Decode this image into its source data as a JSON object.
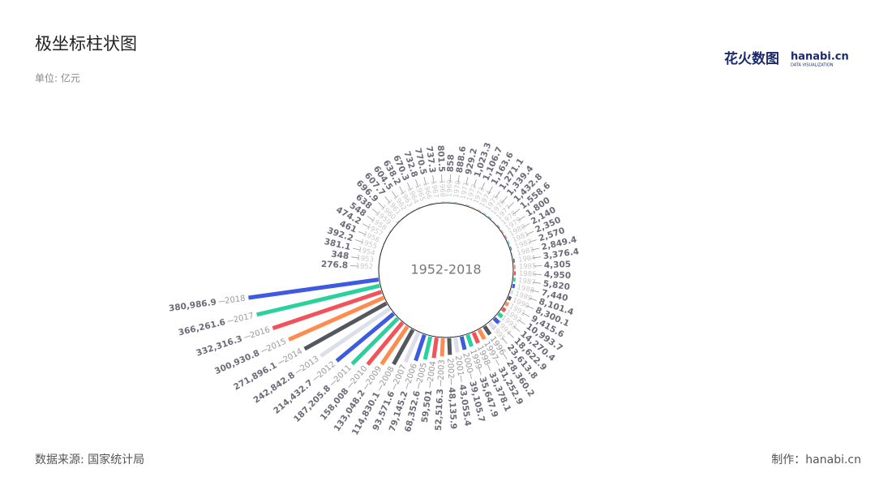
{
  "chart_data": {
    "type": "polar-bar",
    "title": "极坐标柱状图",
    "subtitle": "单位: 亿元",
    "center_label": "1952-2018",
    "categories": [
      "1952",
      "1953",
      "1954",
      "1955",
      "1956",
      "1957",
      "1958",
      "1959",
      "1960",
      "1961",
      "1962",
      "1963",
      "1964",
      "1965",
      "1966",
      "1967",
      "1968",
      "1969",
      "1970",
      "1971",
      "1972",
      "1973",
      "1974",
      "1975",
      "1976",
      "1977",
      "1978",
      "1979",
      "1980",
      "1981",
      "1982",
      "1983",
      "1984",
      "1985",
      "1986",
      "1987",
      "1988",
      "1989",
      "1990",
      "1991",
      "1992",
      "1993",
      "1994",
      "1995",
      "1996",
      "1997",
      "1998",
      "1999",
      "2000",
      "2001",
      "2002",
      "2003",
      "2004",
      "2005",
      "2006",
      "2007",
      "2008",
      "2009",
      "2010",
      "2011",
      "2012",
      "2013",
      "2014",
      "2015",
      "2016",
      "2017",
      "2018"
    ],
    "values": [
      276.8,
      348,
      381.1,
      392.2,
      461,
      474.2,
      548,
      638,
      696.9,
      607.7,
      604.5,
      638.2,
      670.3,
      732.8,
      770.5,
      737.3,
      801.5,
      858,
      888.6,
      929.2,
      1023.3,
      1106.7,
      1163.6,
      1271.1,
      1339.4,
      1432.8,
      1558.6,
      1800,
      2140,
      2350,
      2570,
      2849.4,
      3376.4,
      4305,
      4950,
      5820,
      7440,
      8101.4,
      8300.1,
      9415.6,
      10993.7,
      14270.4,
      18622.9,
      23613.8,
      28360.2,
      31252.9,
      33378.1,
      35647.9,
      39105.7,
      43055.4,
      48135.9,
      52516.3,
      59501,
      68352.6,
      79145.2,
      93571.6,
      114830.1,
      133048.2,
      158008,
      187205.8,
      214432.7,
      242842.8,
      271896.1,
      300930.8,
      332316.3,
      366261.6,
      380986.9
    ],
    "value_labels": [
      "276.8",
      "348",
      "381.1",
      "392.2",
      "461",
      "474.2",
      "548",
      "638",
      "696.9",
      "607.7",
      "604.5",
      "638.2",
      "670.3",
      "732.8",
      "770.5",
      "737.3",
      "801.5",
      "858",
      "888.6",
      "929.2",
      "1,023.3",
      "1,106.7",
      "1,163.6",
      "1,271.1",
      "1,339.4",
      "1,432.8",
      "1,558.6",
      "1,800",
      "2,140",
      "2,350",
      "2,570",
      "2,849.4",
      "3,376.4",
      "4,305",
      "4,950",
      "5,820",
      "7,440",
      "8,101.4",
      "8,300.1",
      "9,415.6",
      "10,993.7",
      "14,270.4",
      "18,622.9",
      "23,613.8",
      "28,360.2",
      "31,252.9",
      "33,378.1",
      "35,647.9",
      "39,105.7",
      "43,055.4",
      "48,135.9",
      "52,516.3",
      "59,501",
      "68,352.6",
      "79,145.2",
      "93,571.6",
      "114,830.1",
      "133,048.2",
      "158,008",
      "187,205.8",
      "214,432.7",
      "242,842.8",
      "271,896.1",
      "300,930.8",
      "332,316.3",
      "366,261.6",
      "380,986.9"
    ],
    "colors": [
      "#3d5ae0",
      "#dcdfea",
      "#55575f",
      "#ff8c4f",
      "#f2525a",
      "#2bd19d"
    ],
    "ylim": [
      0,
      400000
    ]
  },
  "logo": {
    "mark": "花火数图",
    "text": "hanabi.cn",
    "tagline": "DATA VISUALIZATION"
  },
  "footer": {
    "source": "数据来源: 国家统计局",
    "credit": "制作：hanabi.cn"
  }
}
